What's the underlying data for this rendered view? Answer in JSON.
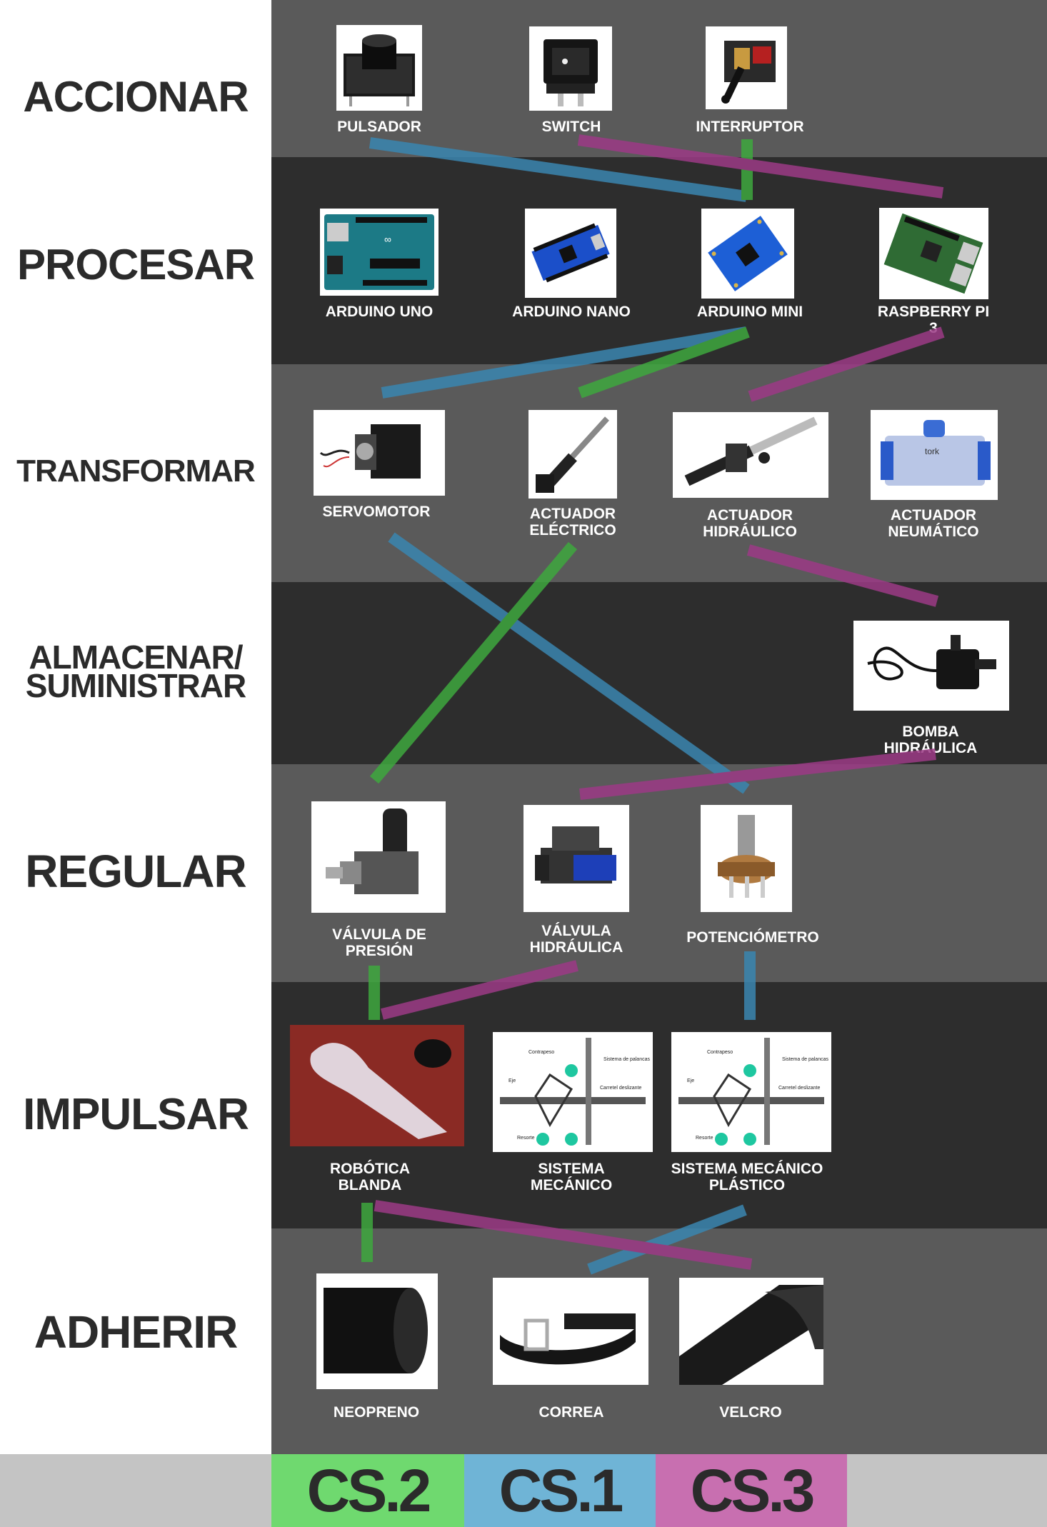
{
  "rows": {
    "accionar": "ACCIONAR",
    "procesar": "PROCESAR",
    "transformar": "TRANSFORMAR",
    "almacenar": "ALMACENAR/\nSUMINISTRAR",
    "regular": "REGULAR",
    "impulsar": "IMPULSAR",
    "adherir": "ADHERIR"
  },
  "items": {
    "pulsador": "PULSADOR",
    "switch": "SWITCH",
    "interruptor": "INTERRUPTOR",
    "arduino_uno": "ARDUINO UNO",
    "arduino_nano": "ARDUINO NANO",
    "arduino_mini": "ARDUINO MINI",
    "raspberry": "RASPBERRY PI 3",
    "servomotor": "SERVOMOTOR",
    "actuador_electrico": "ACTUADOR\nELÉCTRICO",
    "actuador_hidraulico": "ACTUADOR\nHIDRÁULICO",
    "actuador_neumatico": "ACTUADOR\nNEUMÁTICO",
    "bomba": "BOMBA HIDRÁULICA",
    "valvula_presion": "VÁLVULA DE\nPRESIÓN",
    "valvula_hidraulica": "VÁLVULA\nHIDRÁULICA",
    "potenciometro": "POTENCIÓMETRO",
    "robotica_blanda": "ROBÓTICA\nBLANDA",
    "sistema_mecanico": "SISTEMA\nMECÁNICO",
    "sistema_mecanico_plastico": "SISTEMA MECÁNICO\nPLÁSTICO",
    "neopreno": "NEOPRENO",
    "correa": "CORREA",
    "velcro": "VELCRO"
  },
  "diagram_text": {
    "contrapeso": "Contrapeso",
    "sistema_palancas": "Sistema de palancas",
    "eje": "Eje",
    "carretel": "Carretel deslizante",
    "resorte": "Resorte"
  },
  "legend": {
    "cs2": "CS.2",
    "cs1": "CS.1",
    "cs3": "CS.3"
  },
  "colors": {
    "cs2": "#6fd96f",
    "cs1": "#6fb4d6",
    "cs3": "#c86fb0",
    "link_cs2": "#3ea83e",
    "link_cs1": "#3a86b0",
    "link_cs3": "#9c3a86"
  }
}
